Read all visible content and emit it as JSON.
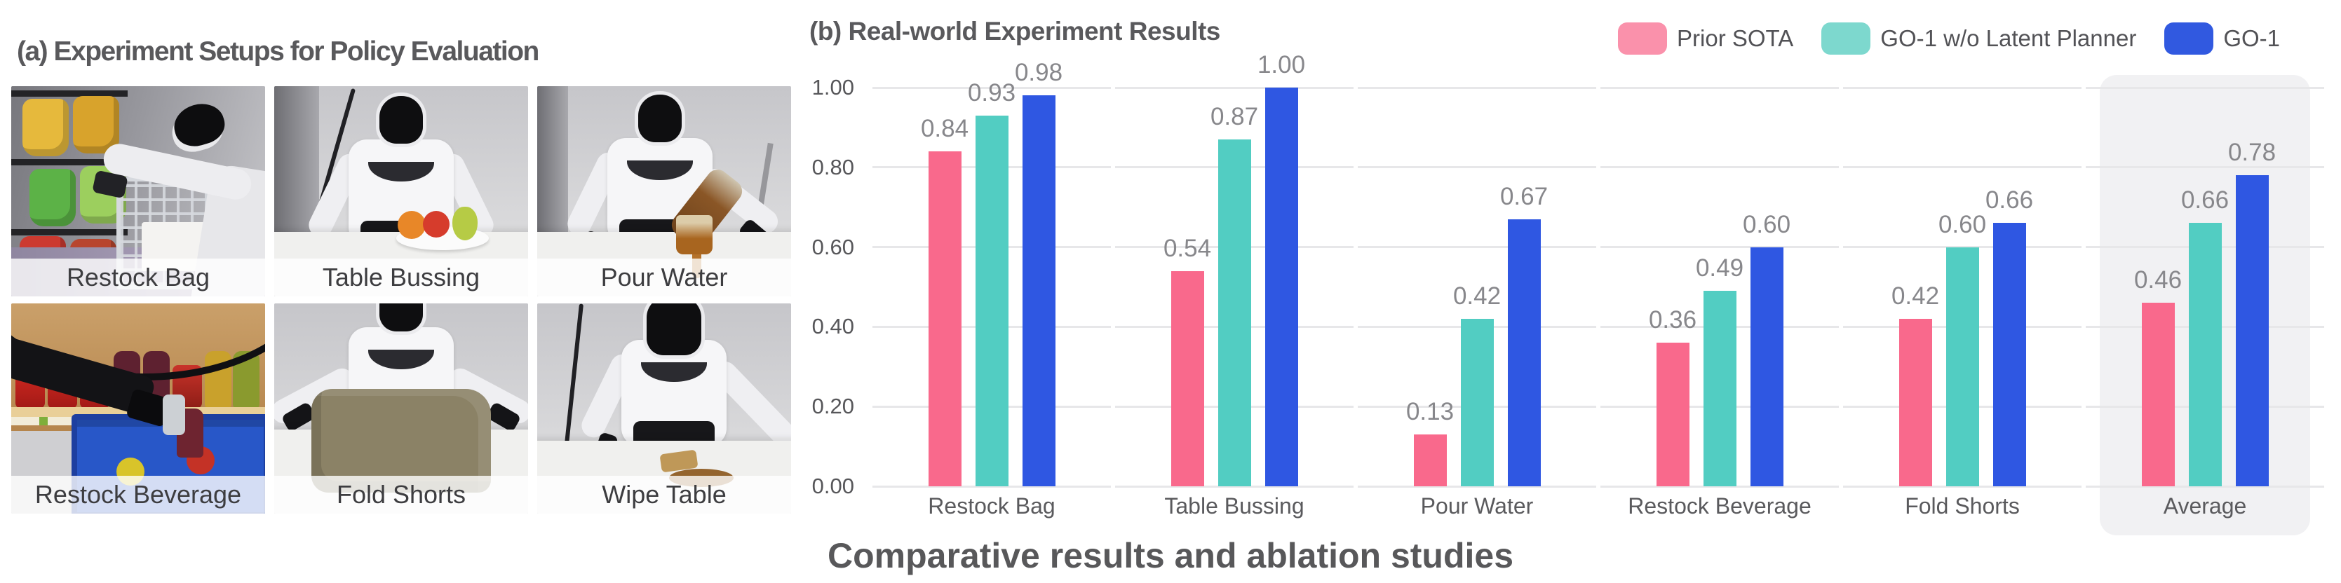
{
  "panel_a": {
    "title": "(a) Experiment Setups for Policy Evaluation",
    "photos": [
      {
        "label": "Restock Bag"
      },
      {
        "label": "Table Bussing"
      },
      {
        "label": "Pour Water"
      },
      {
        "label": "Restock Beverage"
      },
      {
        "label": "Fold Shorts"
      },
      {
        "label": "Wipe Table"
      }
    ]
  },
  "panel_b": {
    "title": "(b) Real-world Experiment Results",
    "caption": "Comparative results and ablation studies",
    "legend": [
      {
        "label": "Prior SOTA",
        "swatch": "#fa91ab"
      },
      {
        "label": "GO-1 w/o Latent Planner",
        "swatch": "#7dd8ce"
      },
      {
        "label": "GO-1",
        "swatch": "#3159e0"
      }
    ]
  },
  "chart_data": {
    "type": "bar",
    "title": "(b) Real-world Experiment Results",
    "categories": [
      "Restock Bag",
      "Table Bussing",
      "Pour Water",
      "Restock Beverage",
      "Fold Shorts",
      "Average"
    ],
    "series": [
      {
        "name": "Prior SOTA",
        "color": "#f9698c",
        "values": [
          0.84,
          0.54,
          0.13,
          0.36,
          0.42,
          0.46
        ]
      },
      {
        "name": "GO-1 w/o Latent Planner",
        "color": "#52cdc2",
        "values": [
          0.93,
          0.87,
          0.42,
          0.49,
          0.6,
          0.66
        ]
      },
      {
        "name": "GO-1",
        "color": "#2f57e2",
        "values": [
          0.98,
          1.0,
          0.67,
          0.6,
          0.66,
          0.78
        ]
      }
    ],
    "xlabel": "",
    "ylabel": "",
    "ylim": [
      0,
      1.0
    ],
    "yticks": [
      0.0,
      0.2,
      0.4,
      0.6,
      0.8,
      1.0
    ],
    "grid": true,
    "value_labels": true,
    "legend_position": "top-right",
    "highlight_category": "Average",
    "gridline_color": "#e7e7e9",
    "highlight_color": "#f1f1f3"
  }
}
